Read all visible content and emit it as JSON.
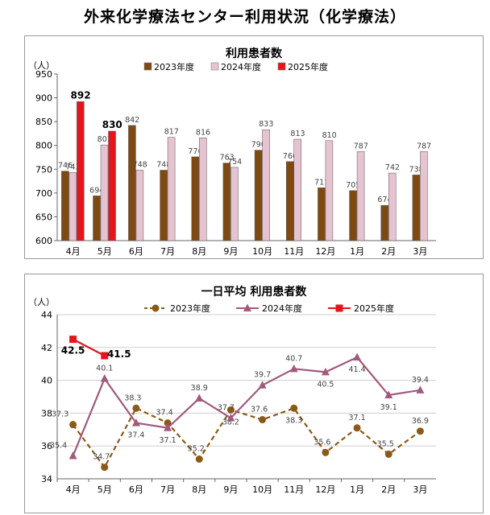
{
  "page_title": "外来化学療法センター利用状況（化学療法）",
  "chart_data": [
    {
      "type": "bar",
      "title": "利用患者数",
      "unit_label": "（人）",
      "ylim": [
        600,
        950
      ],
      "ytick_step": 50,
      "grid": false,
      "legend_position": "top",
      "categories": [
        "4月",
        "5月",
        "6月",
        "7月",
        "8月",
        "9月",
        "10月",
        "11月",
        "12月",
        "1月",
        "2月",
        "3月"
      ],
      "series": [
        {
          "name": "2023年度",
          "color": "#7f4a12",
          "values": [
            746,
            694,
            842,
            748,
            776,
            763,
            790,
            766,
            711,
            705,
            674,
            738
          ]
        },
        {
          "name": "2024年度",
          "color": "#e6c3d0",
          "values": [
            743,
            801,
            748,
            817,
            816,
            754,
            833,
            813,
            810,
            787,
            742,
            787
          ]
        },
        {
          "name": "2025年度",
          "color": "#e8141c",
          "values": [
            892,
            830,
            null,
            null,
            null,
            null,
            null,
            null,
            null,
            null,
            null,
            null
          ]
        }
      ]
    },
    {
      "type": "line",
      "title": "一日平均 利用患者数",
      "unit_label": "（人）",
      "ylim": [
        34,
        44
      ],
      "ytick_step": 2,
      "grid": true,
      "legend_position": "top",
      "categories": [
        "4月",
        "5月",
        "6月",
        "7月",
        "8月",
        "9月",
        "10月",
        "11月",
        "12月",
        "1月",
        "2月",
        "3月"
      ],
      "series": [
        {
          "name": "2023年度",
          "color": "#8b5a17",
          "marker": "circle",
          "dashed": true,
          "values": [
            37.3,
            34.7,
            38.3,
            37.4,
            35.2,
            38.2,
            37.6,
            38.3,
            35.6,
            37.1,
            35.5,
            36.9
          ]
        },
        {
          "name": "2024年度",
          "color": "#a05a7e",
          "marker": "triangle",
          "dashed": false,
          "values": [
            35.4,
            40.1,
            37.4,
            37.1,
            38.9,
            37.7,
            39.7,
            40.7,
            40.5,
            41.4,
            39.1,
            39.4
          ]
        },
        {
          "name": "2025年度",
          "color": "#e8141c",
          "marker": "square",
          "dashed": false,
          "values": [
            42.5,
            41.5,
            null,
            null,
            null,
            null,
            null,
            null,
            null,
            null,
            null,
            null
          ]
        }
      ]
    }
  ]
}
